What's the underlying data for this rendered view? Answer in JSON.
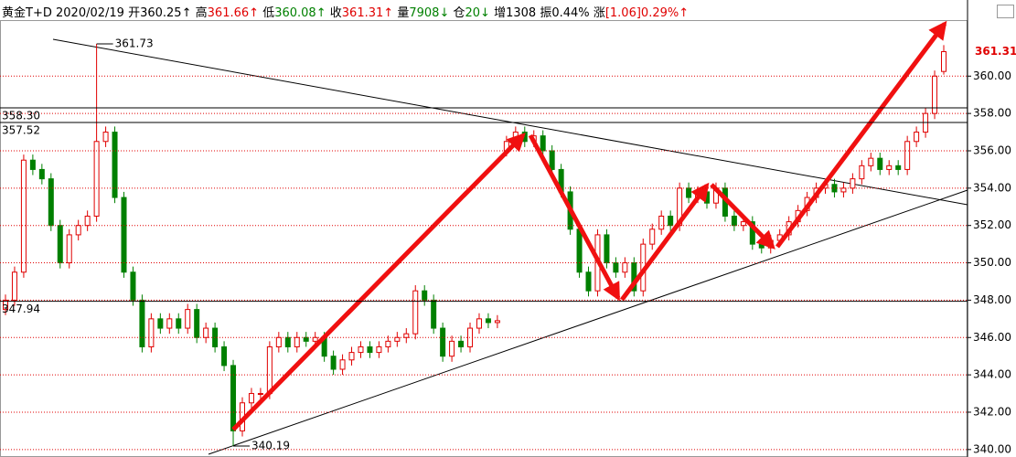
{
  "header": {
    "symbol": "黄金T+D",
    "date": "2020/02/19",
    "items": [
      {
        "label": "开",
        "value": "360.25",
        "arrow": "↑",
        "color": "#000000"
      },
      {
        "label": "高",
        "value": "361.66",
        "arrow": "↑",
        "color": "#e00000"
      },
      {
        "label": "低",
        "value": "360.08",
        "arrow": "↑",
        "color": "#008000"
      },
      {
        "label": "收",
        "value": "361.31",
        "arrow": "↑",
        "color": "#e00000"
      },
      {
        "label": "量",
        "value": "7908",
        "arrow": "↓",
        "color": "#008000"
      },
      {
        "label": "仓",
        "value": "20",
        "arrow": "↓",
        "color": "#008000"
      },
      {
        "label": "增",
        "value": "1308",
        "color": "#000000"
      },
      {
        "label": "振",
        "value": "0.44%",
        "color": "#000000"
      },
      {
        "label": "涨",
        "value": "[1.06]0.29%",
        "arrow": "↑",
        "color": "#e00000"
      }
    ]
  },
  "chart_data": {
    "type": "candlestick",
    "open": [
      347.5,
      348.0,
      349.5,
      355.5,
      355.0,
      354.5,
      352.0,
      350.0,
      351.5,
      352.0,
      352.5,
      356.5,
      357.0,
      353.5,
      349.5,
      348.0,
      345.5,
      347.0,
      346.5,
      347.0,
      346.5,
      347.5,
      346.0,
      346.5,
      345.5,
      344.5,
      341.0,
      342.5,
      343.0,
      343.0,
      345.5,
      346.0,
      345.5,
      346.0,
      345.8,
      346.0,
      345.0,
      344.3,
      344.8,
      345.2,
      345.5,
      345.2,
      345.5,
      345.8,
      346.0,
      346.2,
      348.5,
      348.0,
      346.5,
      345.0,
      345.8,
      345.5,
      346.5,
      347.0,
      346.8,
      356.0,
      356.5,
      357.0,
      356.5,
      356.8,
      356.0,
      355.0,
      353.8,
      351.8,
      349.5,
      348.5,
      351.5,
      350.0,
      349.5,
      350.0,
      348.5,
      351.0,
      351.8,
      352.5,
      352.0,
      354.0,
      353.5,
      353.8,
      353.2,
      354.0,
      352.5,
      352.0,
      352.2,
      351.0,
      350.8,
      351.2,
      351.5,
      352.2,
      352.8,
      353.5,
      354.0,
      354.2,
      353.8,
      354.0,
      354.5,
      355.2,
      355.6,
      355.0,
      355.2,
      355.0,
      356.5,
      357.0,
      358.0,
      360.25
    ],
    "high": [
      348.3,
      349.8,
      355.8,
      355.8,
      355.3,
      354.8,
      352.3,
      351.8,
      352.3,
      352.8,
      361.73,
      357.3,
      357.3,
      353.8,
      349.8,
      348.3,
      347.3,
      347.3,
      347.3,
      347.3,
      347.8,
      347.8,
      346.8,
      346.8,
      345.8,
      344.8,
      342.8,
      343.3,
      343.3,
      345.8,
      346.3,
      346.3,
      346.3,
      346.3,
      346.3,
      346.3,
      345.3,
      345.1,
      345.5,
      345.8,
      345.8,
      345.8,
      346.1,
      346.3,
      346.5,
      348.8,
      348.8,
      348.3,
      346.8,
      346.1,
      346.1,
      346.8,
      347.3,
      347.3,
      347.2,
      356.8,
      357.3,
      357.3,
      357.1,
      357.1,
      356.3,
      355.3,
      354.1,
      352.1,
      349.8,
      351.8,
      351.8,
      350.3,
      350.3,
      350.3,
      351.3,
      352.1,
      352.8,
      352.8,
      354.3,
      354.3,
      354.1,
      354.1,
      354.3,
      354.3,
      352.8,
      352.5,
      352.5,
      351.3,
      351.5,
      351.8,
      352.5,
      353.1,
      353.8,
      354.3,
      354.5,
      354.5,
      354.3,
      354.8,
      355.5,
      355.9,
      355.9,
      355.5,
      355.5,
      356.8,
      357.3,
      358.3,
      360.3,
      361.66
    ],
    "low": [
      347.2,
      347.7,
      349.2,
      354.7,
      354.2,
      351.7,
      349.7,
      349.7,
      351.2,
      351.7,
      352.2,
      356.2,
      353.2,
      349.2,
      347.7,
      345.2,
      345.2,
      346.2,
      346.2,
      346.2,
      346.2,
      345.7,
      345.7,
      345.2,
      344.2,
      340.19,
      340.7,
      342.2,
      342.7,
      342.7,
      345.2,
      345.2,
      345.2,
      345.5,
      345.5,
      344.7,
      344.0,
      344.0,
      344.5,
      344.9,
      344.9,
      344.9,
      345.2,
      345.5,
      345.7,
      345.9,
      347.7,
      346.2,
      344.7,
      344.7,
      345.2,
      345.2,
      346.2,
      346.5,
      346.5,
      355.7,
      356.2,
      356.2,
      356.2,
      355.7,
      354.7,
      353.5,
      351.5,
      349.2,
      348.2,
      348.2,
      349.7,
      349.2,
      349.2,
      348.2,
      348.2,
      350.7,
      351.5,
      351.7,
      351.7,
      353.2,
      353.2,
      352.9,
      352.9,
      352.2,
      351.7,
      351.7,
      350.7,
      350.5,
      350.5,
      350.9,
      351.2,
      351.9,
      352.5,
      353.2,
      353.7,
      353.5,
      353.5,
      353.7,
      354.2,
      354.9,
      354.7,
      354.7,
      354.7,
      354.7,
      356.2,
      356.7,
      357.7,
      360.08
    ],
    "close": [
      348.0,
      349.5,
      355.5,
      355.0,
      354.5,
      352.0,
      350.0,
      351.5,
      352.0,
      352.5,
      356.5,
      357.0,
      353.5,
      349.5,
      348.0,
      345.5,
      347.0,
      346.5,
      347.0,
      346.5,
      347.5,
      346.0,
      346.5,
      345.5,
      344.5,
      341.0,
      342.5,
      343.0,
      343.0,
      345.5,
      346.0,
      345.5,
      346.0,
      345.8,
      346.0,
      345.0,
      344.3,
      344.8,
      345.2,
      345.5,
      345.2,
      345.5,
      345.8,
      346.0,
      346.2,
      348.5,
      348.0,
      346.5,
      345.0,
      345.8,
      345.5,
      346.5,
      347.0,
      346.8,
      346.9,
      356.5,
      357.0,
      356.5,
      356.8,
      356.0,
      355.0,
      353.8,
      351.8,
      349.5,
      348.5,
      351.5,
      350.0,
      349.5,
      350.0,
      348.5,
      351.0,
      351.8,
      352.5,
      352.0,
      354.0,
      353.5,
      353.8,
      353.2,
      354.0,
      352.5,
      352.0,
      352.2,
      351.0,
      350.8,
      351.2,
      351.5,
      352.2,
      352.8,
      353.5,
      354.0,
      354.2,
      353.8,
      354.0,
      354.5,
      355.2,
      355.6,
      355.0,
      355.2,
      355.0,
      356.5,
      357.0,
      358.0,
      360.0,
      361.31
    ],
    "up_color": "#e00000",
    "down_color": "#008000",
    "ylim": [
      339.6,
      363
    ],
    "yticks": [
      {
        "value": 340,
        "label": "340.00"
      },
      {
        "value": 342,
        "label": "342.00"
      },
      {
        "value": 344,
        "label": "344.00"
      },
      {
        "value": 346,
        "label": "346.00"
      },
      {
        "value": 348,
        "label": "348.00"
      },
      {
        "value": 350,
        "label": "350.00"
      },
      {
        "value": 352,
        "label": "352.00"
      },
      {
        "value": 354,
        "label": "354.00"
      },
      {
        "value": 356,
        "label": "356.00"
      },
      {
        "value": 358,
        "label": "358.00"
      },
      {
        "value": 360,
        "label": "360.00"
      }
    ],
    "grid": true,
    "lines": [
      {
        "value": 358.3,
        "label": "358.30"
      },
      {
        "value": 357.52,
        "label": "357.52"
      },
      {
        "value": 347.94,
        "label": "347.94"
      }
    ]
  }
}
